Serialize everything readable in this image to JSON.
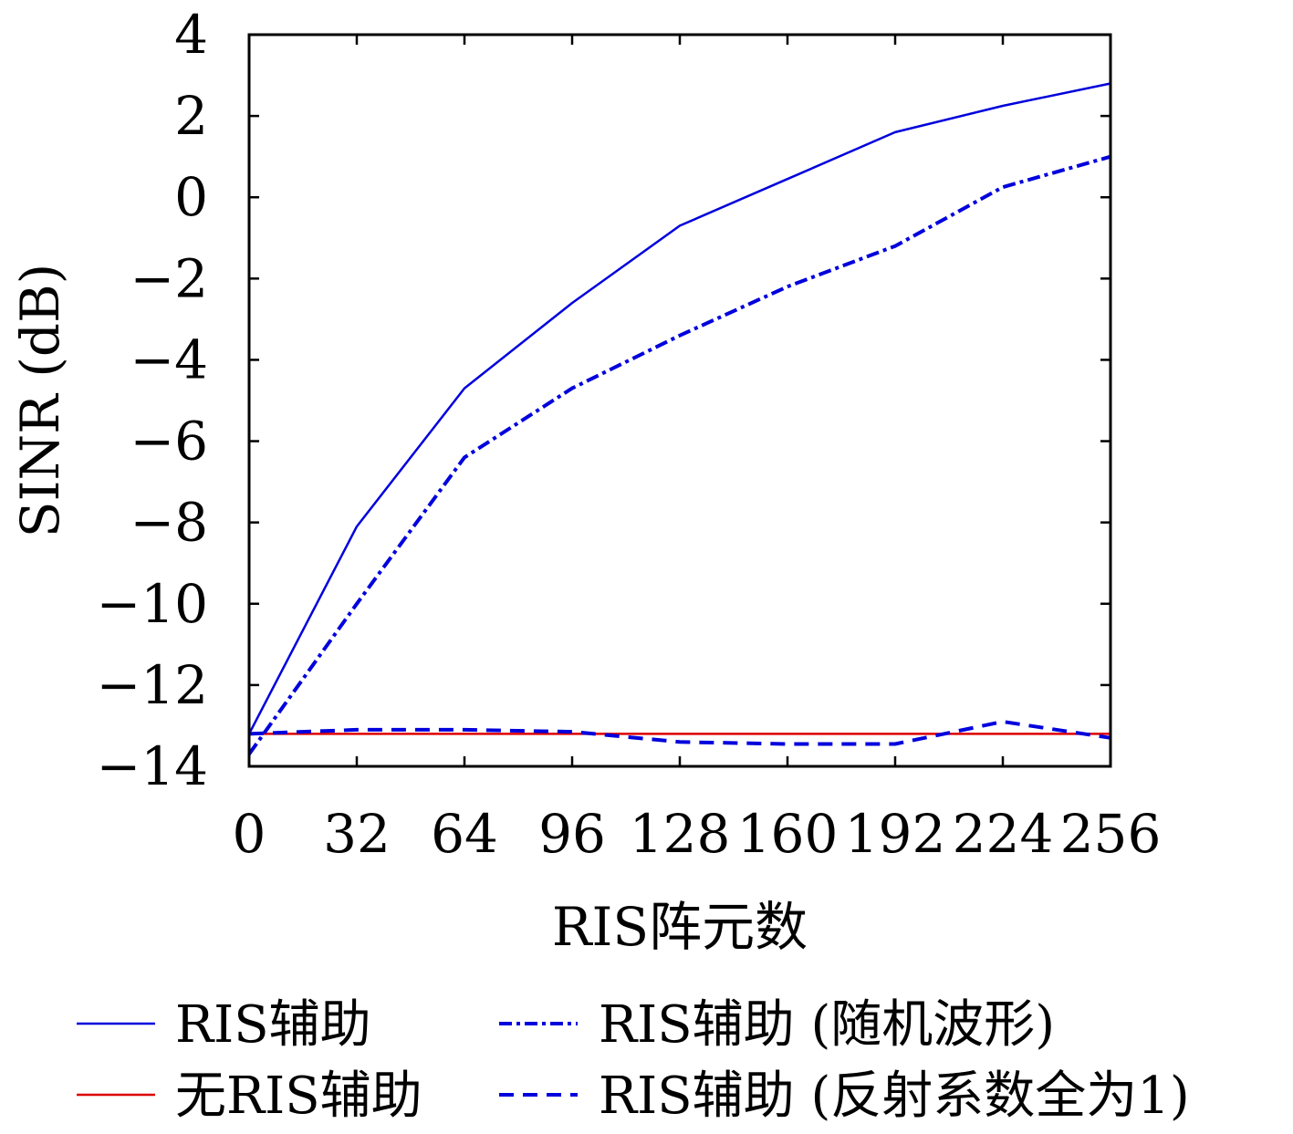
{
  "chart_data": {
    "type": "line",
    "title": "",
    "xlabel": "RIS阵元数",
    "ylabel": "SINR (dB)",
    "xlim": [
      0,
      256
    ],
    "ylim": [
      -14,
      4
    ],
    "xticks": [
      0,
      32,
      64,
      96,
      128,
      160,
      192,
      224,
      256
    ],
    "xtick_labels": [
      "0",
      "32",
      "64",
      "96",
      "128",
      "160",
      "192",
      "224",
      "256"
    ],
    "yticks": [
      4,
      2,
      0,
      -2,
      -4,
      -6,
      -8,
      -10,
      -12,
      -14
    ],
    "ytick_labels": [
      "4",
      "2",
      "0",
      "−2",
      "−4",
      "−6",
      "−8",
      "−10",
      "−12",
      "−14"
    ],
    "grid": false,
    "legend_position": "bottom",
    "x": [
      0,
      32,
      64,
      96,
      128,
      160,
      192,
      224,
      256
    ],
    "series": [
      {
        "name": "RIS辅助",
        "color": "#0000dd",
        "style": "solid",
        "values": [
          -13.2,
          -8.1,
          -4.7,
          -2.6,
          -0.7,
          0.45,
          1.6,
          2.25,
          2.8
        ]
      },
      {
        "name": "无RIS辅助",
        "color": "#dd0000",
        "style": "solid",
        "values": [
          -13.2,
          -13.2,
          -13.2,
          -13.2,
          -13.2,
          -13.2,
          -13.2,
          -13.2,
          -13.2
        ]
      },
      {
        "name": "RIS辅助 (随机波形)",
        "color": "#0000dd",
        "style": "dashdot",
        "values": [
          -13.7,
          -10.0,
          -6.4,
          -4.7,
          -3.4,
          -2.2,
          -1.2,
          0.25,
          1.0
        ]
      },
      {
        "name": "RIS辅助 (反射系数全为1)",
        "color": "#0000dd",
        "style": "dashed",
        "values": [
          -13.2,
          -13.1,
          -13.1,
          -13.15,
          -13.4,
          -13.45,
          -13.45,
          -12.9,
          -13.3
        ]
      }
    ]
  }
}
